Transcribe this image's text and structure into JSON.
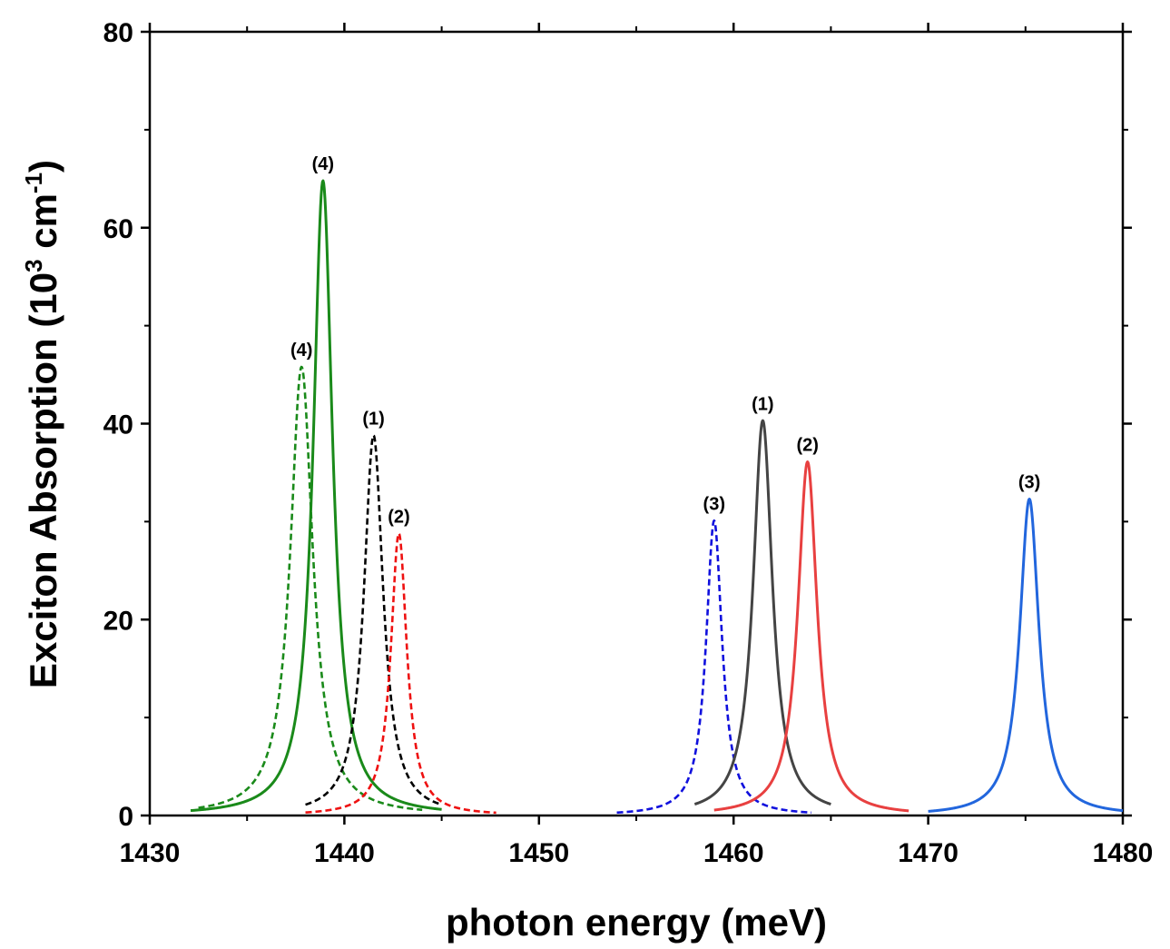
{
  "chart_data": {
    "type": "line",
    "title": "",
    "xlabel": "photon energy (meV)",
    "ylabel_main": "Exciton Absorption (10",
    "ylabel_sup": "3",
    "ylabel_unit": " cm",
    "ylabel_unit_sup": "-1",
    "ylabel_close": ")",
    "xlim": [
      1430,
      1480
    ],
    "ylim": [
      0,
      80
    ],
    "xticks": [
      1430,
      1440,
      1450,
      1460,
      1470,
      1480
    ],
    "yticks": [
      0,
      20,
      40,
      60,
      80
    ],
    "grid": false,
    "series": [
      {
        "name": "(4) dashed",
        "label": "(4)",
        "color": "#1a8a1a",
        "dashed": true,
        "x0": 1437.8,
        "peak": 45.8,
        "hwhm": 0.7,
        "x_from": 1432.5,
        "x_to": 1444.0
      },
      {
        "name": "(4) solid",
        "label": "(4)",
        "color": "#1a8a1a",
        "dashed": false,
        "x0": 1438.9,
        "peak": 64.8,
        "hwhm": 0.6,
        "x_from": 1432.1,
        "x_to": 1445.0
      },
      {
        "name": "(1) dashed",
        "label": "(1)",
        "color": "#000000",
        "dashed": true,
        "x0": 1441.5,
        "peak": 38.8,
        "hwhm": 0.6,
        "x_from": 1438.0,
        "x_to": 1445.0
      },
      {
        "name": "(2) dashed",
        "label": "(2)",
        "color": "#ee1111",
        "dashed": true,
        "x0": 1442.8,
        "peak": 28.8,
        "hwhm": 0.5,
        "x_from": 1438.0,
        "x_to": 1447.8
      },
      {
        "name": "(3) dashed",
        "label": "(3)",
        "color": "#1010dd",
        "dashed": true,
        "x0": 1459.0,
        "peak": 30.1,
        "hwhm": 0.5,
        "x_from": 1454.0,
        "x_to": 1464.0
      },
      {
        "name": "(1) solid",
        "label": "(1)",
        "color": "#444444",
        "dashed": false,
        "x0": 1461.5,
        "peak": 40.3,
        "hwhm": 0.6,
        "x_from": 1458.0,
        "x_to": 1465.0
      },
      {
        "name": "(2) solid",
        "label": "(2)",
        "color": "#e84040",
        "dashed": false,
        "x0": 1463.8,
        "peak": 36.1,
        "hwhm": 0.6,
        "x_from": 1459.0,
        "x_to": 1469.0
      },
      {
        "name": "(3) solid",
        "label": "(3)",
        "color": "#2266dd",
        "dashed": false,
        "x0": 1475.2,
        "peak": 32.3,
        "hwhm": 0.6,
        "x_from": 1470.0,
        "x_to": 1480.0
      }
    ]
  }
}
